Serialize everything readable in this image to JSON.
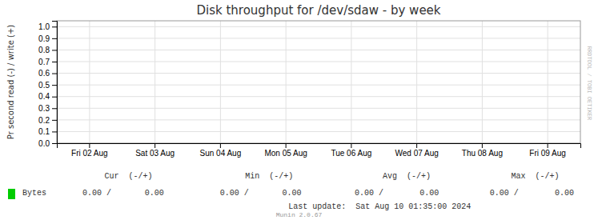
{
  "chart_data": {
    "type": "line",
    "title": "Disk throughput for /dev/sdaw - by week",
    "y_label": "Pr second read (-) / write (+)",
    "categories": [
      "Fri 02 Aug",
      "Sat 03 Aug",
      "Sun 04 Aug",
      "Mon 05 Aug",
      "Tue 06 Aug",
      "Wed 07 Aug",
      "Thu 08 Aug",
      "Fri 09 Aug"
    ],
    "series": [
      {
        "name": "Bytes",
        "color": "#00cc00",
        "values": [
          null,
          null,
          null,
          null,
          null,
          null,
          null,
          null
        ]
      }
    ],
    "ylim": [
      0.0,
      1.05
    ],
    "yticks": [
      {
        "value": 0.0,
        "label": "0.0"
      },
      0.1,
      0.2,
      0.3,
      0.4,
      0.5,
      0.6,
      0.7,
      0.8,
      0.9,
      {
        "value": 1.0,
        "label": "1.0"
      }
    ],
    "grid": true,
    "legend": "bottom",
    "annotations": [
      "RRDTOOL / TOBI OETIKER",
      "Cur  (-/+)",
      "Min  (-/+)",
      "Avg  (-/+)",
      "Max  (-/+)",
      "0.00 /",
      "0.00",
      "0.00 /",
      "0.00",
      "0.00 /",
      "0.00",
      "0.00 /",
      "0.00",
      "Last update:  Sat Aug 10 01:35:00 2024",
      "Munin 2.0.67"
    ]
  }
}
